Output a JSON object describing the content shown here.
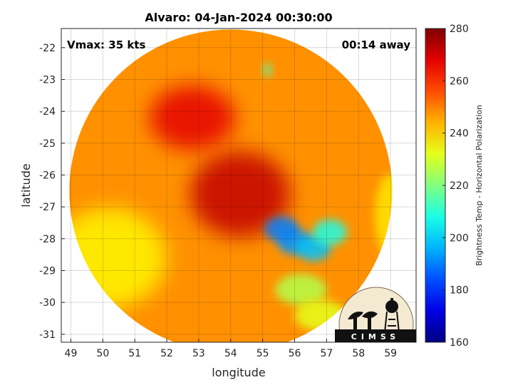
{
  "chart_data": {
    "type": "heatmap",
    "title": "Alvaro: 04-Jan-2024 00:30:00",
    "xlabel": "longitude",
    "ylabel": "latitude",
    "xlim": [
      48.7,
      59.8
    ],
    "ylim": [
      -31.25,
      -21.4
    ],
    "y_reversed": true,
    "xticks": [
      49,
      50,
      51,
      52,
      53,
      54,
      55,
      56,
      57,
      58,
      59
    ],
    "yticks": [
      -22,
      -23,
      -24,
      -25,
      -26,
      -27,
      -28,
      -29,
      -30,
      -31
    ],
    "grid": true,
    "annotations": {
      "vmax": "Vmax: 35 kts",
      "time_offset": "00:14 away"
    },
    "colorbar": {
      "label": "Brightness Temp - Horizontal Polarization",
      "min": 160,
      "max": 280,
      "ticks": [
        160,
        180,
        200,
        220,
        240,
        260,
        280
      ],
      "colormap": "jet"
    },
    "swath": {
      "center_lon": 54.0,
      "center_lat": -26.5,
      "radius_deg": 5.05,
      "background_value": 248
    },
    "features": [
      {
        "type": "storm_center_cold_core",
        "lon": 54.3,
        "lat": -26.6,
        "value": 272
      },
      {
        "type": "spiral_band",
        "lon": 52.8,
        "lat": -24.2,
        "value": 268
      },
      {
        "type": "warm_coastal_zone",
        "lon": 50.2,
        "lat": -28.6,
        "value": 236
      },
      {
        "type": "convective_cluster",
        "lon": 56.0,
        "lat": -28.1,
        "value": 193
      },
      {
        "type": "convective_cluster",
        "lon": 55.6,
        "lat": -27.7,
        "value": 190
      },
      {
        "type": "convective_cluster",
        "lon": 56.6,
        "lat": -28.3,
        "value": 198
      },
      {
        "type": "convective_cluster",
        "lon": 57.1,
        "lat": -27.8,
        "value": 208
      },
      {
        "type": "rain_band",
        "lon": 56.2,
        "lat": -29.6,
        "value": 226
      },
      {
        "type": "rain_band",
        "lon": 56.8,
        "lat": -30.4,
        "value": 232
      },
      {
        "type": "eastern_edge_band",
        "lon": 59.0,
        "lat": -27.3,
        "value": 238
      },
      {
        "type": "isolated_cell",
        "lon": 55.15,
        "lat": -22.7,
        "value": 215
      }
    ],
    "logo": "CIMSS"
  }
}
